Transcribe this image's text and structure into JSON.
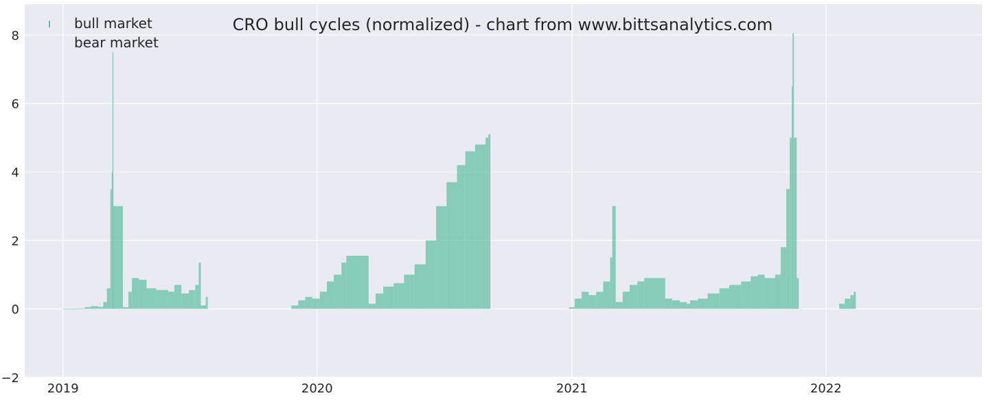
{
  "chart_data": {
    "type": "bar",
    "title": "CRO bull cycles (normalized)  - chart from www.bittsanalytics.com",
    "xlabel": "",
    "ylabel": "",
    "ylim": [
      -2,
      8.9
    ],
    "xlim": [
      "2018-11-07",
      "2022-08-13"
    ],
    "yticks": [
      "−2",
      "0",
      "2",
      "4",
      "6",
      "8"
    ],
    "xticks": [
      "2019",
      "2020",
      "2021",
      "2022"
    ],
    "grid": true,
    "legend_position": "top-left",
    "colors": {
      "bull": "#66c2a5",
      "bear": "#fc8d62",
      "background": "#eaeaf2",
      "grid": "#ffffff"
    },
    "series": [
      {
        "name": "bull market",
        "points": [
          [
            "2019-01-01",
            0.0
          ],
          [
            "2019-01-20",
            0.01
          ],
          [
            "2019-02-01",
            0.05
          ],
          [
            "2019-02-10",
            0.08
          ],
          [
            "2019-02-20",
            0.06
          ],
          [
            "2019-02-28",
            0.2
          ],
          [
            "2019-03-05",
            0.6
          ],
          [
            "2019-03-10",
            3.5
          ],
          [
            "2019-03-12",
            4.0
          ],
          [
            "2019-03-13",
            7.5
          ],
          [
            "2019-03-14",
            3.0
          ],
          [
            "2019-03-28",
            0.05
          ],
          [
            "2019-04-05",
            0.5
          ],
          [
            "2019-04-10",
            0.9
          ],
          [
            "2019-04-20",
            0.85
          ],
          [
            "2019-05-01",
            0.6
          ],
          [
            "2019-05-15",
            0.55
          ],
          [
            "2019-06-01",
            0.5
          ],
          [
            "2019-06-10",
            0.7
          ],
          [
            "2019-06-20",
            0.45
          ],
          [
            "2019-07-01",
            0.55
          ],
          [
            "2019-07-10",
            0.7
          ],
          [
            "2019-07-15",
            1.35
          ],
          [
            "2019-07-18",
            0.1
          ],
          [
            "2019-07-25",
            0.35
          ],
          [
            "2019-11-25",
            0.1
          ],
          [
            "2019-12-05",
            0.25
          ],
          [
            "2019-12-15",
            0.35
          ],
          [
            "2019-12-25",
            0.3
          ],
          [
            "2020-01-05",
            0.5
          ],
          [
            "2020-01-15",
            0.8
          ],
          [
            "2020-01-25",
            1.0
          ],
          [
            "2020-02-05",
            1.35
          ],
          [
            "2020-02-12",
            1.55
          ],
          [
            "2020-03-15",
            0.15
          ],
          [
            "2020-03-25",
            0.45
          ],
          [
            "2020-04-05",
            0.65
          ],
          [
            "2020-04-20",
            0.75
          ],
          [
            "2020-05-05",
            1.0
          ],
          [
            "2020-05-20",
            1.3
          ],
          [
            "2020-06-05",
            2.0
          ],
          [
            "2020-06-20",
            3.0
          ],
          [
            "2020-07-05",
            3.7
          ],
          [
            "2020-07-20",
            4.2
          ],
          [
            "2020-08-01",
            4.6
          ],
          [
            "2020-08-15",
            4.8
          ],
          [
            "2020-08-30",
            5.0
          ],
          [
            "2020-09-03",
            5.1
          ],
          [
            "2020-12-28",
            0.05
          ],
          [
            "2021-01-05",
            0.3
          ],
          [
            "2021-01-15",
            0.5
          ],
          [
            "2021-01-25",
            0.4
          ],
          [
            "2021-02-05",
            0.5
          ],
          [
            "2021-02-15",
            0.8
          ],
          [
            "2021-02-25",
            1.5
          ],
          [
            "2021-02-28",
            3.0
          ],
          [
            "2021-03-05",
            0.2
          ],
          [
            "2021-03-15",
            0.5
          ],
          [
            "2021-03-25",
            0.7
          ],
          [
            "2021-04-05",
            0.8
          ],
          [
            "2021-04-15",
            0.9
          ],
          [
            "2021-05-15",
            0.3
          ],
          [
            "2021-05-25",
            0.25
          ],
          [
            "2021-06-05",
            0.2
          ],
          [
            "2021-06-15",
            0.15
          ],
          [
            "2021-06-20",
            0.25
          ],
          [
            "2021-07-01",
            0.3
          ],
          [
            "2021-07-15",
            0.45
          ],
          [
            "2021-08-01",
            0.6
          ],
          [
            "2021-08-15",
            0.7
          ],
          [
            "2021-09-01",
            0.8
          ],
          [
            "2021-09-15",
            0.95
          ],
          [
            "2021-09-25",
            1.0
          ],
          [
            "2021-10-05",
            0.9
          ],
          [
            "2021-10-20",
            1.0
          ],
          [
            "2021-10-28",
            1.8
          ],
          [
            "2021-11-05",
            3.5
          ],
          [
            "2021-11-10",
            5.0
          ],
          [
            "2021-11-13",
            6.5
          ],
          [
            "2021-11-14",
            8.05
          ],
          [
            "2021-11-16",
            5.0
          ],
          [
            "2021-11-20",
            0.9
          ],
          [
            "2022-01-20",
            0.15
          ],
          [
            "2022-01-28",
            0.3
          ],
          [
            "2022-02-05",
            0.4
          ],
          [
            "2022-02-10",
            0.5
          ]
        ]
      },
      {
        "name": "bear market",
        "points": []
      }
    ]
  },
  "legend": {
    "bull_label": "bull market",
    "bear_label": "bear market"
  }
}
